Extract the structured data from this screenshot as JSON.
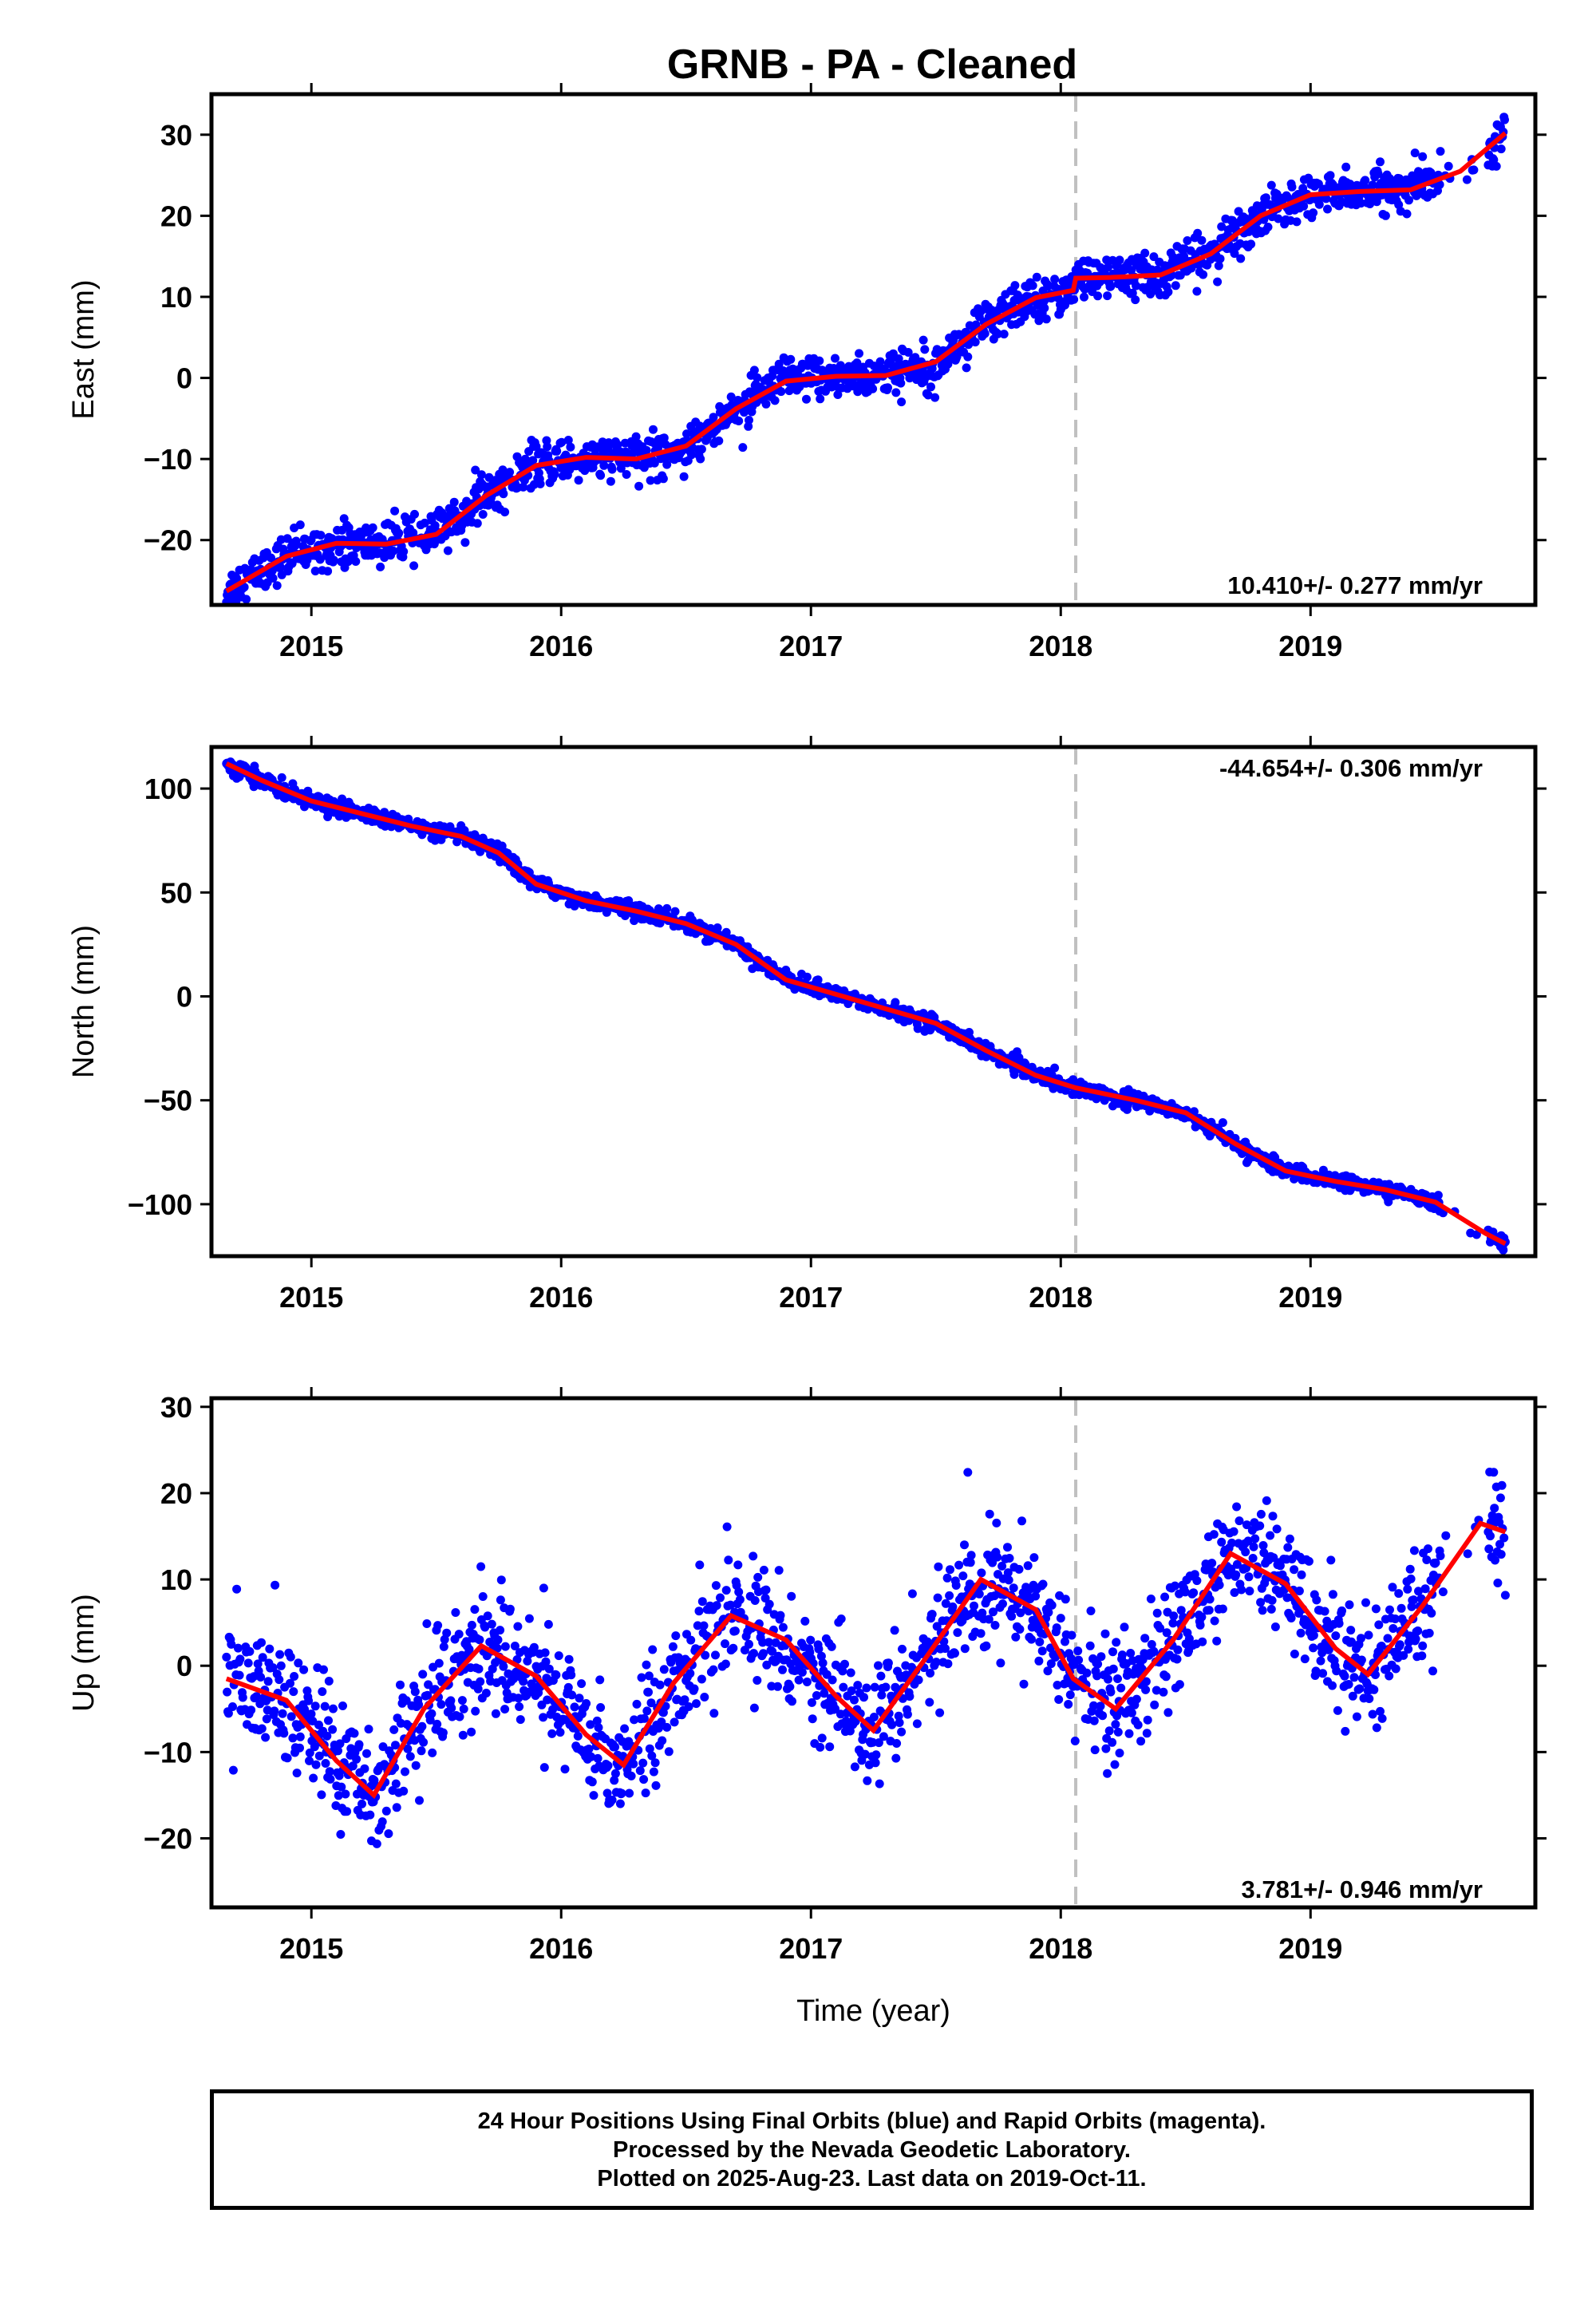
{
  "title": "GRNB  - PA - Cleaned",
  "colors": {
    "data": "#0000ff",
    "fit": "#ff0000",
    "break": "#c0c0c0"
  },
  "chart_data": [
    {
      "type": "scatter",
      "ylabel": "East (mm)",
      "xlim": [
        2014.6,
        2019.9
      ],
      "ylim": [
        -28,
        35
      ],
      "yticks": [
        -20,
        -10,
        0,
        10,
        20,
        30
      ],
      "xticks": [
        2015,
        2016,
        2017,
        2018,
        2019
      ],
      "xticklabels": [
        "2015",
        "2016",
        "2017",
        "2018",
        "2019"
      ],
      "rate_label": "10.410+/- 0.277 mm/yr",
      "break_epoch": 2018.06,
      "data_range": [
        2014.66,
        2019.78
      ],
      "gap": [
        2019.52,
        2019.71
      ],
      "fit": {
        "x": [
          2014.66,
          2014.9,
          2015.1,
          2015.3,
          2015.5,
          2015.7,
          2015.9,
          2016.1,
          2016.3,
          2016.5,
          2016.7,
          2016.9,
          2017.1,
          2017.3,
          2017.5,
          2017.7,
          2017.9,
          2018.05,
          2018.06,
          2018.2,
          2018.4,
          2018.6,
          2018.8,
          2019.0,
          2019.2,
          2019.4,
          2019.6,
          2019.78
        ],
        "y": [
          -26.3,
          -22.0,
          -20.4,
          -20.5,
          -19.3,
          -14.5,
          -10.8,
          -9.8,
          -10.0,
          -8.4,
          -3.8,
          -0.4,
          0.2,
          0.3,
          2.0,
          6.6,
          9.9,
          10.8,
          12.3,
          12.4,
          12.7,
          15.3,
          20.0,
          22.6,
          23.0,
          23.2,
          25.5,
          30.2
        ]
      },
      "noise": 1.3
    },
    {
      "type": "scatter",
      "ylabel": "North (mm)",
      "xlim": [
        2014.6,
        2019.9
      ],
      "ylim": [
        -125,
        120
      ],
      "yticks": [
        -100,
        -50,
        0,
        50,
        100
      ],
      "xticks": [
        2015,
        2016,
        2017,
        2018,
        2019
      ],
      "xticklabels": [
        "2015",
        "2016",
        "2017",
        "2018",
        "2019"
      ],
      "rate_label": "-44.654+/- 0.306 mm/yr",
      "break_epoch": 2018.06,
      "data_range": [
        2014.66,
        2019.78
      ],
      "gap": [
        2019.52,
        2019.71
      ],
      "fit": {
        "x": [
          2014.66,
          2014.8,
          2015.0,
          2015.2,
          2015.4,
          2015.6,
          2015.75,
          2015.9,
          2016.1,
          2016.3,
          2016.5,
          2016.7,
          2016.9,
          2017.1,
          2017.3,
          2017.5,
          2017.7,
          2017.9,
          2018.06,
          2018.3,
          2018.5,
          2018.7,
          2018.9,
          2019.1,
          2019.3,
          2019.5,
          2019.7,
          2019.78
        ],
        "y": [
          112,
          104,
          94,
          88,
          82,
          77,
          69,
          54,
          46,
          41,
          35,
          25,
          8,
          1,
          -6,
          -13,
          -26,
          -38,
          -44,
          -50,
          -56,
          -71,
          -84,
          -89,
          -93,
          -99,
          -114,
          -119
        ]
      },
      "noise": 1.8
    },
    {
      "type": "scatter",
      "xlabel": "Time (year)",
      "ylabel": "Up (mm)",
      "xlim": [
        2014.6,
        2019.9
      ],
      "ylim": [
        -28,
        31
      ],
      "yticks": [
        -20,
        -10,
        0,
        10,
        20,
        30
      ],
      "xticks": [
        2015,
        2016,
        2017,
        2018,
        2019
      ],
      "xticklabels": [
        "2015",
        "2016",
        "2017",
        "2018",
        "2019"
      ],
      "rate_label": "3.781+/- 0.946 mm/yr",
      "break_epoch": 2018.06,
      "data_range": [
        2014.66,
        2019.78
      ],
      "gap": [
        2019.52,
        2019.71
      ],
      "fit": {
        "x": [
          2014.66,
          2014.9,
          2015.1,
          2015.25,
          2015.45,
          2015.68,
          2015.9,
          2016.1,
          2016.25,
          2016.45,
          2016.68,
          2016.9,
          2017.1,
          2017.25,
          2017.45,
          2017.68,
          2017.9,
          2018.05,
          2018.22,
          2018.45,
          2018.68,
          2018.9,
          2019.1,
          2019.23,
          2019.45,
          2019.68,
          2019.78
        ],
        "y": [
          -1.5,
          -4,
          -11,
          -15,
          -5,
          2.3,
          -1.2,
          -8,
          -11.5,
          -2,
          5.8,
          3,
          -3.5,
          -7.5,
          0.5,
          10,
          6.5,
          -1.5,
          -5,
          3,
          13,
          9.5,
          2,
          -1,
          7,
          16.5,
          15.5
        ]
      },
      "noise": 3.4
    }
  ],
  "footer": {
    "line1": "24 Hour Positions Using Final Orbits (blue) and Rapid Orbits (magenta).",
    "line2": "Processed by the Nevada Geodetic Laboratory.",
    "line3": "Plotted on 2025-Aug-23. Last data on 2019-Oct-11."
  }
}
